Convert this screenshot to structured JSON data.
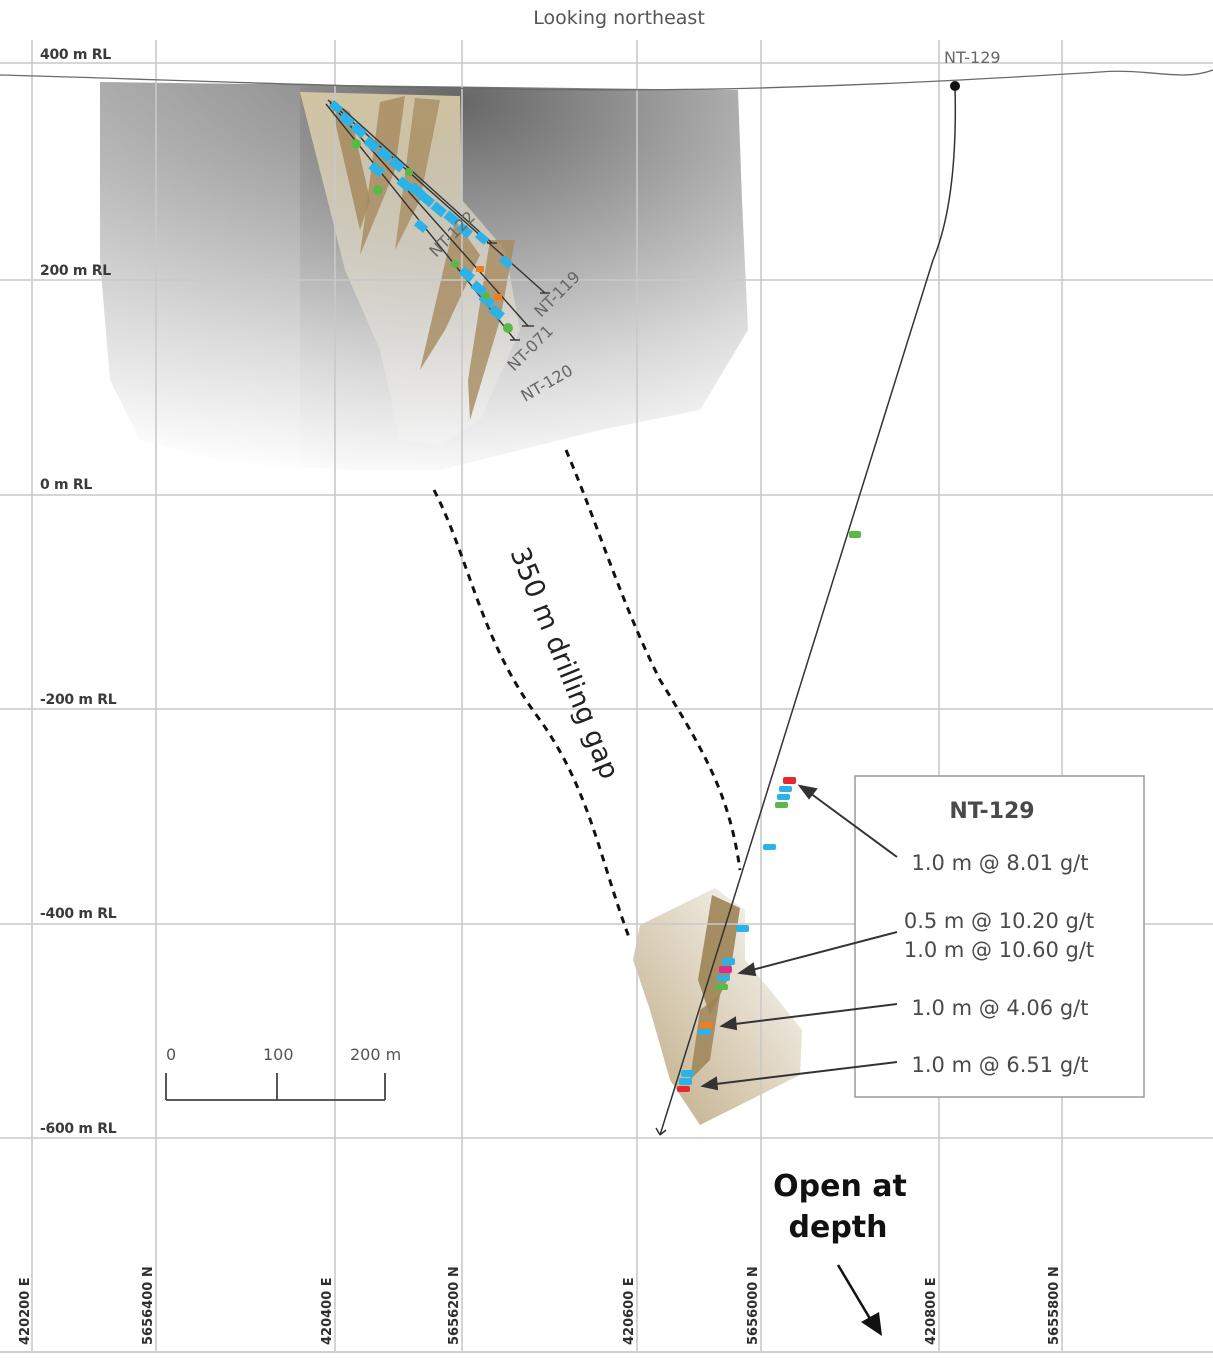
{
  "title": "Looking northeast",
  "rl_labels": [
    "400 m RL",
    "200 m RL",
    "0 m RL",
    "-200 m RL",
    "-400 m RL",
    "-600 m RL"
  ],
  "coord_labels": [
    "420200 E",
    "5656400 N",
    "420400 E",
    "5656200 N",
    "420600 E",
    "5656000 N",
    "420800 E",
    "5655800 N"
  ],
  "drill_holes": {
    "collar": "NT-129",
    "upper_1": "NT-122",
    "upper_2": "NT-119",
    "upper_3": "NT-071",
    "upper_4": "NT-120"
  },
  "gap_label": "350 m drilling gap",
  "scale_bar": {
    "labels": [
      "0",
      "100",
      "200 m"
    ]
  },
  "legend": {
    "title": "NT-129",
    "intercepts": [
      "1.0 m @ 8.01 g/t",
      "0.5 m @ 10.20 g/t",
      "1.0 m @ 10.60 g/t",
      "1.0 m @ 4.06 g/t",
      "1.0 m @ 6.51 g/t"
    ]
  },
  "open_at_depth": [
    "Open at",
    "depth"
  ],
  "colors": {
    "grid": "#c9c9c9",
    "vein_light": "#cdbf9c",
    "vein_dark": "#a68a5e",
    "assay_blue": "#2bb3e8",
    "assay_green": "#58b947",
    "assay_orange": "#f47c20",
    "assay_red": "#e8262d",
    "assay_magenta": "#d92e8c"
  }
}
